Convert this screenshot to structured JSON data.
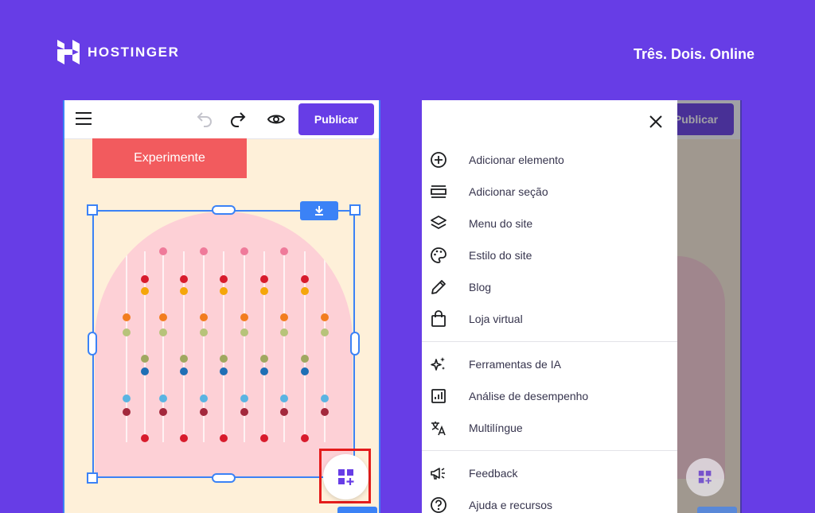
{
  "brand": {
    "name": "HOSTINGER",
    "tagline": "Três. Dois. Online"
  },
  "editor": {
    "publish_label": "Publicar",
    "cta_label": "Experimente"
  },
  "menu": {
    "group1": [
      {
        "label": "Adicionar elemento",
        "icon": "plus-circle-icon"
      },
      {
        "label": "Adicionar seção",
        "icon": "section-icon"
      },
      {
        "label": "Menu do site",
        "icon": "layers-icon"
      },
      {
        "label": "Estilo do site",
        "icon": "palette-icon"
      },
      {
        "label": "Blog",
        "icon": "pencil-icon"
      },
      {
        "label": "Loja virtual",
        "icon": "shopping-bag-icon"
      }
    ],
    "group2": [
      {
        "label": "Ferramentas de IA",
        "icon": "sparkles-icon"
      },
      {
        "label": "Análise de desempenho",
        "icon": "analytics-icon"
      },
      {
        "label": "Multilíngue",
        "icon": "translate-icon"
      }
    ],
    "group3": [
      {
        "label": "Feedback",
        "icon": "megaphone-icon"
      },
      {
        "label": "Ajuda e recursos",
        "icon": "help-circle-icon"
      }
    ]
  },
  "colors": {
    "background": "#673de6",
    "accent": "#673de6",
    "cta": "#f25b5e",
    "selection": "#3b82f6",
    "highlight": "#e41c1c"
  }
}
